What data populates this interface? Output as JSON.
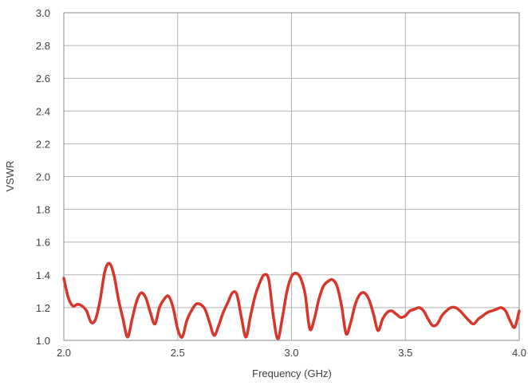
{
  "chart_data": {
    "type": "line",
    "title": "",
    "xlabel": "Frequency (GHz)",
    "ylabel": "VSWR",
    "xlim": [
      2.0,
      4.0
    ],
    "ylim": [
      1.0,
      3.0
    ],
    "x_ticks": [
      "2.0",
      "2.5",
      "3.0",
      "3.5",
      "4.0"
    ],
    "y_ticks": [
      "1.0",
      "1.2",
      "1.4",
      "1.6",
      "1.8",
      "2.0",
      "2.2",
      "2.4",
      "2.6",
      "2.8",
      "3.0"
    ],
    "grid": true,
    "legend": "none",
    "series": [
      {
        "color": "#d7362a",
        "x": [
          2.0,
          2.02,
          2.04,
          2.06,
          2.08,
          2.1,
          2.12,
          2.14,
          2.16,
          2.18,
          2.2,
          2.22,
          2.24,
          2.26,
          2.28,
          2.3,
          2.32,
          2.34,
          2.36,
          2.38,
          2.4,
          2.42,
          2.44,
          2.46,
          2.48,
          2.5,
          2.52,
          2.54,
          2.56,
          2.58,
          2.6,
          2.62,
          2.64,
          2.66,
          2.68,
          2.7,
          2.72,
          2.74,
          2.76,
          2.78,
          2.8,
          2.82,
          2.84,
          2.86,
          2.88,
          2.9,
          2.92,
          2.94,
          2.96,
          2.98,
          3.0,
          3.02,
          3.04,
          3.06,
          3.08,
          3.1,
          3.12,
          3.14,
          3.16,
          3.18,
          3.2,
          3.22,
          3.24,
          3.26,
          3.28,
          3.3,
          3.32,
          3.34,
          3.36,
          3.38,
          3.4,
          3.42,
          3.44,
          3.46,
          3.48,
          3.5,
          3.52,
          3.54,
          3.56,
          3.58,
          3.6,
          3.62,
          3.64,
          3.66,
          3.68,
          3.7,
          3.72,
          3.74,
          3.76,
          3.78,
          3.8,
          3.82,
          3.84,
          3.86,
          3.88,
          3.9,
          3.92,
          3.94,
          3.96,
          3.98,
          4.0
        ],
        "values": [
          1.38,
          1.26,
          1.21,
          1.22,
          1.21,
          1.18,
          1.11,
          1.13,
          1.25,
          1.42,
          1.47,
          1.4,
          1.25,
          1.13,
          1.02,
          1.13,
          1.24,
          1.29,
          1.26,
          1.17,
          1.1,
          1.2,
          1.25,
          1.27,
          1.2,
          1.07,
          1.02,
          1.12,
          1.18,
          1.22,
          1.22,
          1.19,
          1.11,
          1.03,
          1.09,
          1.17,
          1.23,
          1.29,
          1.28,
          1.14,
          1.02,
          1.15,
          1.27,
          1.35,
          1.4,
          1.37,
          1.15,
          1.01,
          1.14,
          1.3,
          1.39,
          1.41,
          1.38,
          1.28,
          1.07,
          1.13,
          1.25,
          1.33,
          1.36,
          1.37,
          1.33,
          1.21,
          1.04,
          1.11,
          1.22,
          1.28,
          1.29,
          1.25,
          1.16,
          1.06,
          1.13,
          1.17,
          1.18,
          1.16,
          1.14,
          1.15,
          1.18,
          1.19,
          1.2,
          1.18,
          1.13,
          1.09,
          1.1,
          1.15,
          1.18,
          1.2,
          1.2,
          1.18,
          1.15,
          1.12,
          1.1,
          1.13,
          1.15,
          1.17,
          1.18,
          1.19,
          1.2,
          1.18,
          1.12,
          1.08,
          1.18
        ]
      }
    ]
  }
}
